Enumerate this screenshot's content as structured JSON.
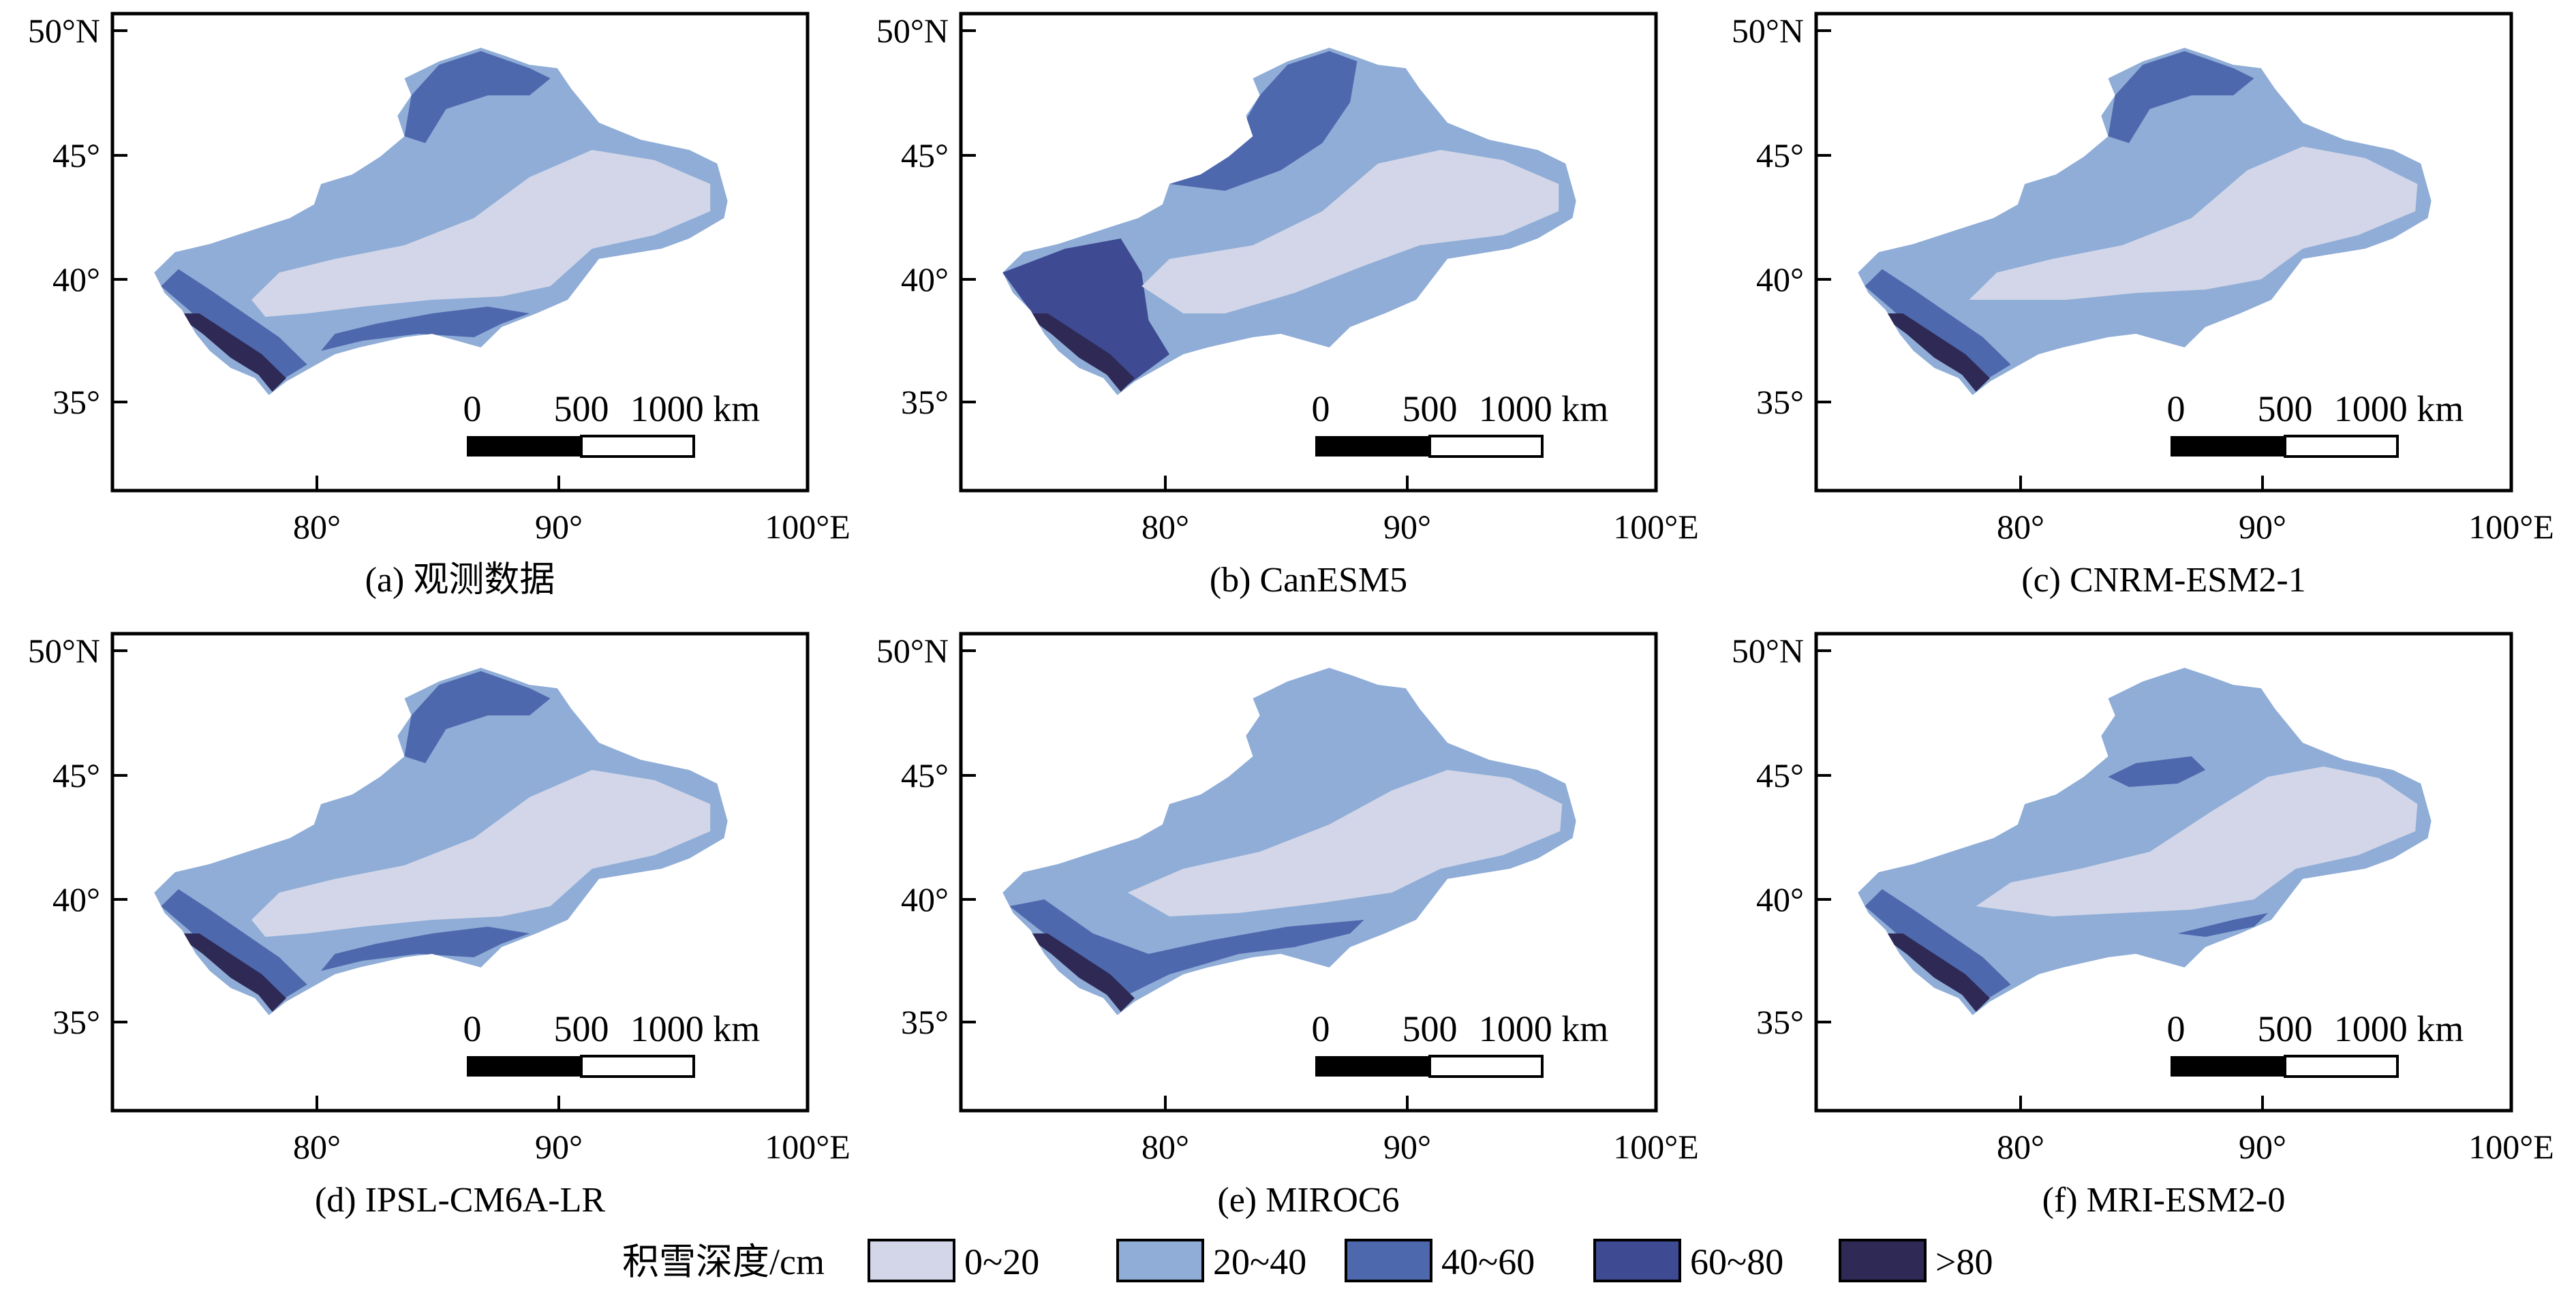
{
  "colors": {
    "c0_20": "#d2d6e8",
    "c20_40": "#8fadd7",
    "c40_60": "#4e68ad",
    "c60_80": "#3e4a92",
    "c80": "#2e2a55"
  },
  "axes": {
    "lat_ticks": [
      "50°N",
      "45°",
      "40°",
      "35°"
    ],
    "lon_ticks": [
      "80°",
      "90°",
      "100°E"
    ]
  },
  "scale_bar": {
    "labels": [
      "0",
      "500",
      "1000 km"
    ]
  },
  "panels": [
    {
      "caption": "(a) 观测数据"
    },
    {
      "caption": "(b) CanESM5"
    },
    {
      "caption": "(c) CNRM-ESM2-1"
    },
    {
      "caption": "(d) IPSL-CM6A-LR"
    },
    {
      "caption": "(e) MIROC6"
    },
    {
      "caption": "(f) MRI-ESM2-0"
    }
  ],
  "legend": {
    "title": "积雪深度/cm",
    "items": [
      {
        "label": "0~20",
        "color": "#d2d6e8"
      },
      {
        "label": "20~40",
        "color": "#8fadd7"
      },
      {
        "label": "40~60",
        "color": "#4e68ad"
      },
      {
        "label": "60~80",
        "color": "#3e4a92"
      },
      {
        "label": ">80",
        "color": "#2e2a55"
      }
    ]
  }
}
